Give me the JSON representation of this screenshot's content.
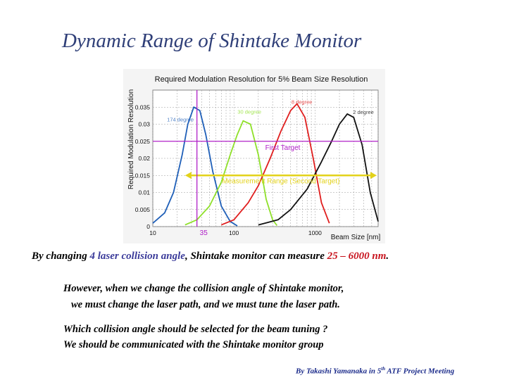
{
  "slide": {
    "title": "Dynamic Range of Shintake Monitor",
    "caption": {
      "prefix": "By changing ",
      "angles": "4 laser collision angle",
      "middle": ", Shintake monitor can measure ",
      "range": "25 – 6000 nm",
      "suffix": "."
    },
    "paragraph1": {
      "line1": "However, when we change the collision angle of Shintake monitor,",
      "line2": "we must change the laser path, and  we must tune the laser path."
    },
    "paragraph2": {
      "line1": "Which collision angle should be selected for the beam tuning ?",
      "line2": "We should be communicated with the Shintake monitor group"
    },
    "footer": {
      "prefix": "By Takashi Yamanaka in 5",
      "sup": "th",
      "suffix": " ATF Project Meeting"
    }
  },
  "chart_data": {
    "type": "line",
    "title": "Required Modulation Resolution for 5% Beam Size Resolution",
    "xlabel": "Beam Size [nm]",
    "ylabel": "Required Modulation Resolution",
    "xscale": "log",
    "xlim": [
      10,
      6000
    ],
    "ylim": [
      0,
      0.04
    ],
    "x_ticks": [
      "10",
      "100",
      "1000"
    ],
    "y_ticks": [
      "0",
      "0.005",
      "0.01",
      "0.015",
      "0.02",
      "0.025",
      "0.03",
      "0.035"
    ],
    "grid": true,
    "series": [
      {
        "name": "174 degree",
        "color": "#1f5fb8",
        "x": [
          10,
          14,
          18,
          23,
          27,
          32,
          38,
          45,
          55,
          70,
          90,
          110
        ],
        "y": [
          0.001,
          0.004,
          0.01,
          0.021,
          0.03,
          0.035,
          0.034,
          0.027,
          0.016,
          0.006,
          0.0015,
          0.0002
        ]
      },
      {
        "name": "30 degree",
        "color": "#8fe02a",
        "x": [
          25,
          35,
          50,
          70,
          90,
          110,
          130,
          160,
          200,
          250,
          300,
          340
        ],
        "y": [
          0.0005,
          0.002,
          0.006,
          0.013,
          0.021,
          0.027,
          0.031,
          0.03,
          0.021,
          0.008,
          0.002,
          0.0003
        ]
      },
      {
        "name": "8 degree",
        "color": "#e01e1e",
        "x": [
          70,
          100,
          150,
          200,
          280,
          380,
          500,
          600,
          750,
          950,
          1200,
          1500
        ],
        "y": [
          0.0005,
          0.002,
          0.007,
          0.012,
          0.02,
          0.028,
          0.034,
          0.036,
          0.032,
          0.02,
          0.007,
          0.001
        ]
      },
      {
        "name": "2 degree",
        "color": "#111111",
        "x": [
          200,
          350,
          500,
          800,
          1200,
          1600,
          2000,
          2500,
          3000,
          3800,
          4800,
          6000
        ],
        "y": [
          0.0005,
          0.002,
          0.005,
          0.011,
          0.019,
          0.025,
          0.03,
          0.033,
          0.032,
          0.024,
          0.01,
          0.0015
        ]
      }
    ],
    "annotations": {
      "first_target": {
        "label": "First Target",
        "y": 0.025,
        "color": "#b020c8"
      },
      "measurement_range": {
        "label": "Measurement Range (Second Target)",
        "y": 0.015,
        "x_from": 25,
        "x_to": 6000,
        "color": "#e3d21a"
      },
      "marker_35": {
        "label": "35",
        "x": 35,
        "color": "#b020c8"
      }
    }
  }
}
